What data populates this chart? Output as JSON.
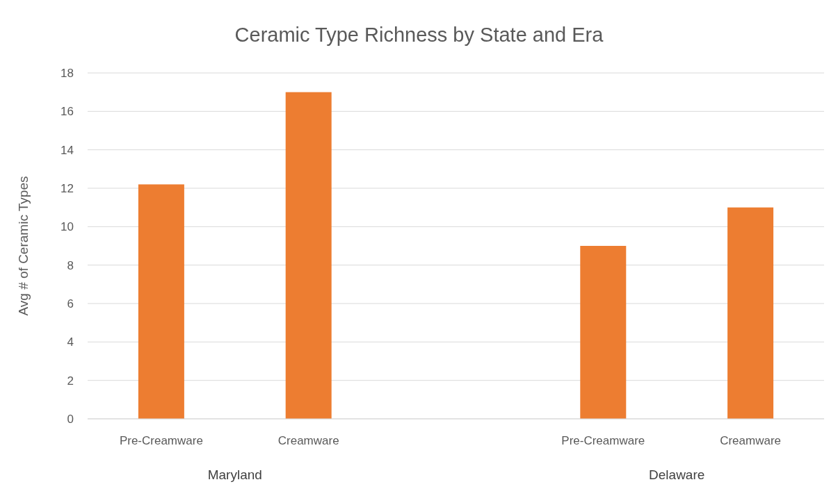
{
  "chart_data": {
    "type": "bar",
    "title": "Ceramic Type Richness by State and Era",
    "ylabel": "Avg # of Ceramic Types",
    "categories": [
      "Pre-Creamware",
      "Creamware",
      null,
      "Pre-Creamware",
      "Creamware"
    ],
    "values": [
      12.2,
      17,
      null,
      9,
      11
    ],
    "color": "#ed7d31",
    "ylim": [
      0,
      18
    ],
    "yticks": [
      0,
      2,
      4,
      6,
      8,
      10,
      12,
      14,
      16,
      18
    ],
    "grid": "y",
    "annotations": [
      "Maryland",
      "Delaware"
    ]
  }
}
